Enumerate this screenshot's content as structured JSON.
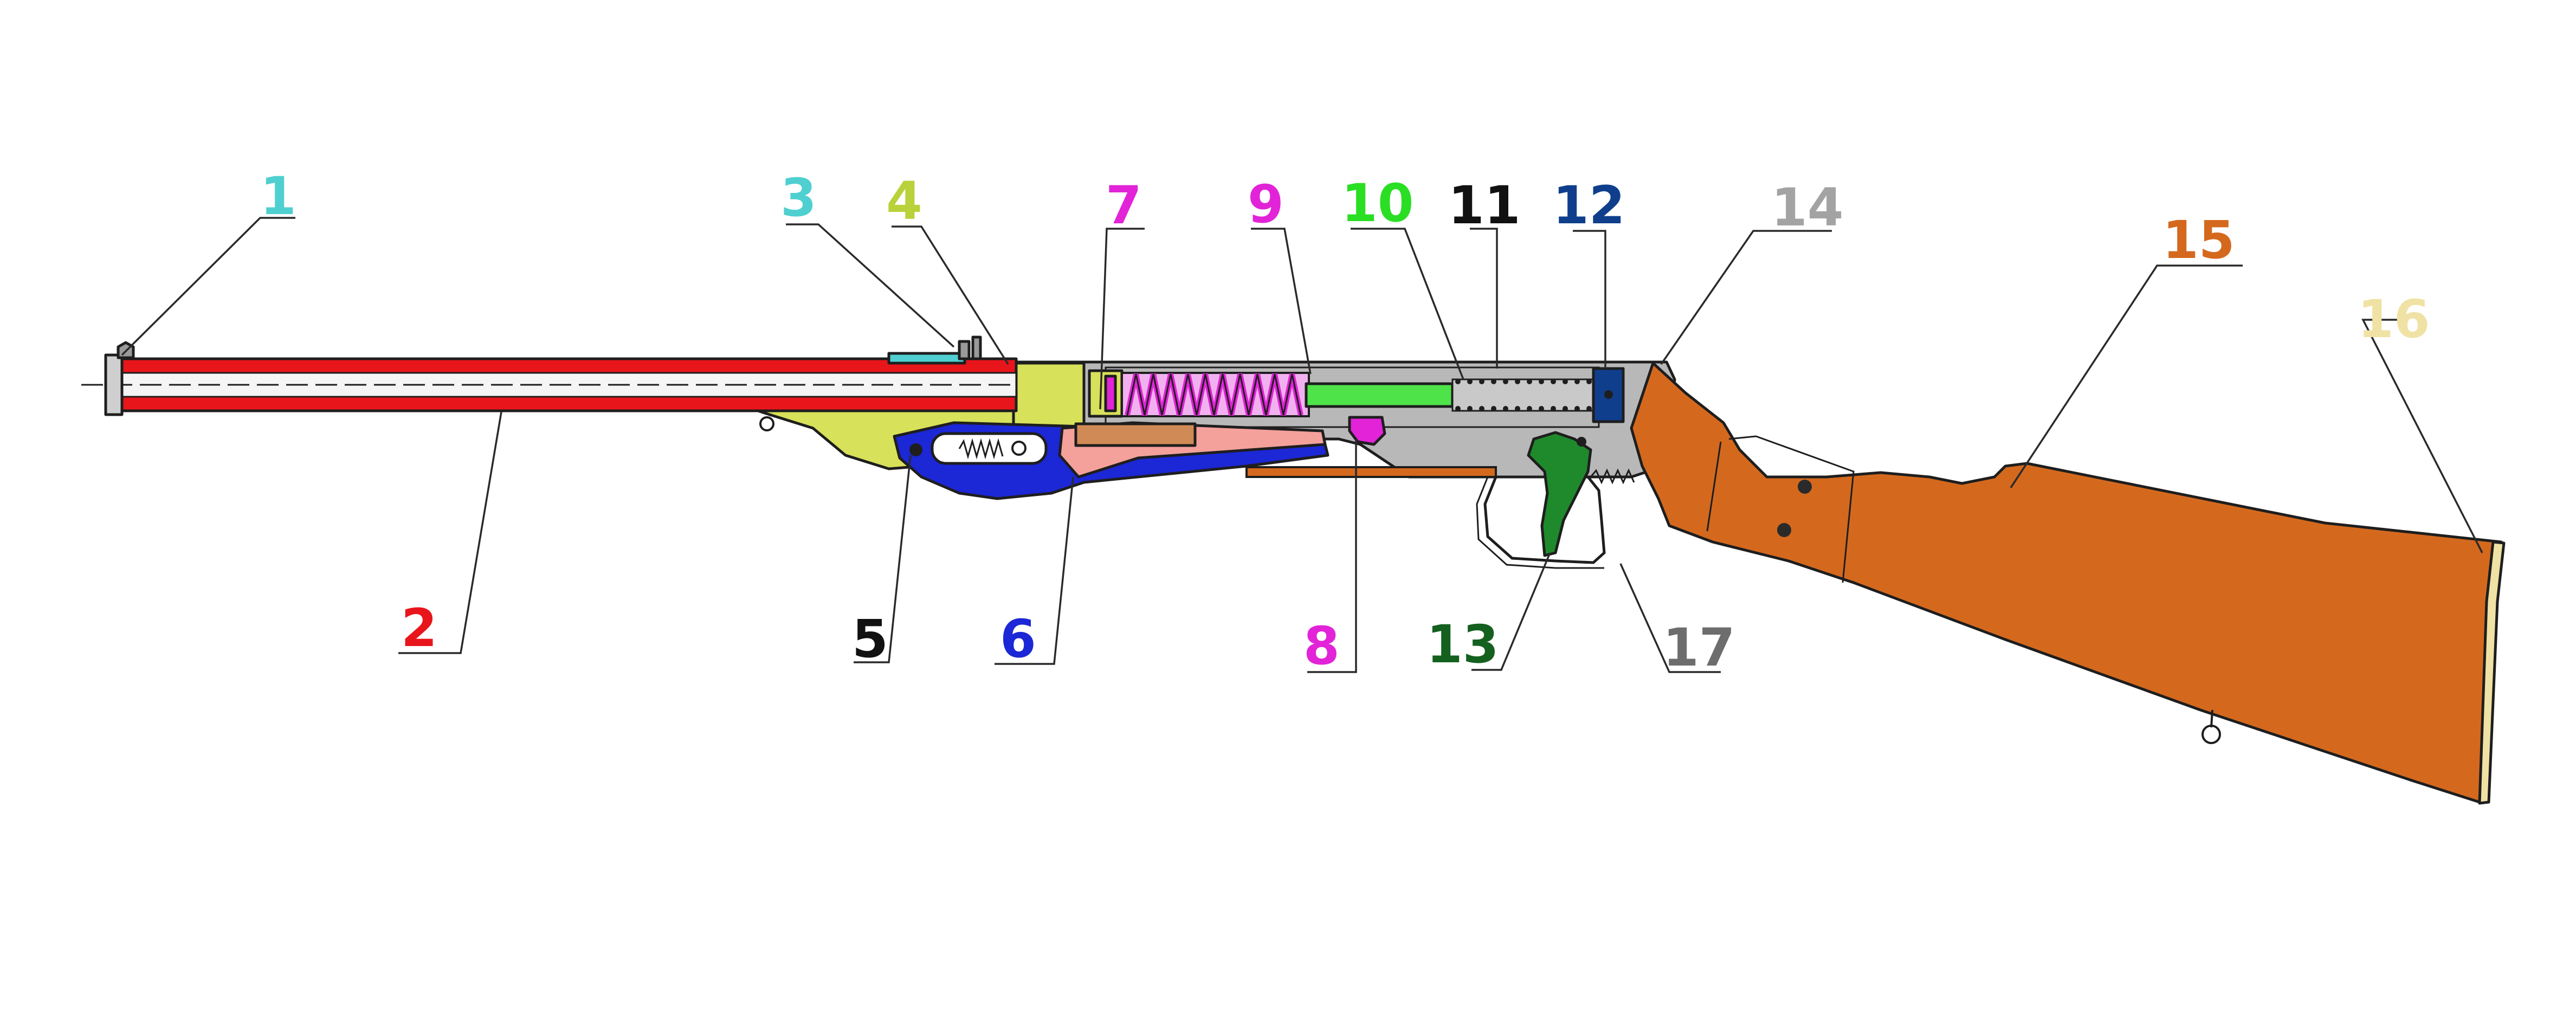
{
  "diagram": {
    "callouts": [
      {
        "id": "1",
        "label": "1",
        "color": "#4fcfd0"
      },
      {
        "id": "2",
        "label": "2",
        "color": "#e8151b"
      },
      {
        "id": "3",
        "label": "3",
        "color": "#4fcfd0"
      },
      {
        "id": "4",
        "label": "4",
        "color": "#b9d13a"
      },
      {
        "id": "5",
        "label": "5",
        "color": "#111111"
      },
      {
        "id": "6",
        "label": "6",
        "color": "#1c27d6"
      },
      {
        "id": "7",
        "label": "7",
        "color": "#e223d8"
      },
      {
        "id": "8",
        "label": "8",
        "color": "#e223d8"
      },
      {
        "id": "9",
        "label": "9",
        "color": "#e223d8"
      },
      {
        "id": "10",
        "label": "10",
        "color": "#2adf23"
      },
      {
        "id": "11",
        "label": "11",
        "color": "#111111"
      },
      {
        "id": "12",
        "label": "12",
        "color": "#0f3f8c"
      },
      {
        "id": "13",
        "label": "13",
        "color": "#14601f"
      },
      {
        "id": "14",
        "label": "14",
        "color": "#a3a3a3"
      },
      {
        "id": "15",
        "label": "15",
        "color": "#d4691e"
      },
      {
        "id": "16",
        "label": "16",
        "color": "#efe2a4"
      },
      {
        "id": "17",
        "label": "17",
        "color": "#6d6d6d"
      }
    ],
    "part_colors": {
      "barrel": "#e8151b",
      "sight": "#4fcfd0",
      "frame_front": "#d8e15a",
      "lever": "#1c27d6",
      "link": "#f4a09b",
      "spring": "#e223d8",
      "plunger_rod": "#4fe34a",
      "end_cap": "#0f3f8c",
      "trigger": "#1f8a2b",
      "receiver": "#b8b8b8",
      "stock": "#d4691e",
      "butt_plate": "#efe2a4"
    }
  }
}
